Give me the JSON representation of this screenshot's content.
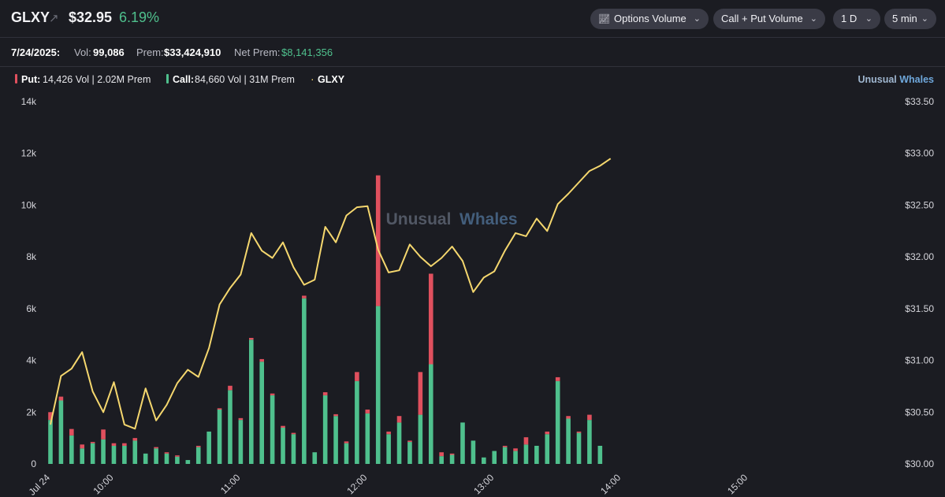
{
  "header": {
    "ticker": "GLXY",
    "price": "$32.95",
    "change": "6.19%",
    "controls": [
      {
        "label": "Options Volume",
        "icon": "line-chart-icon"
      },
      {
        "label": "Call + Put Volume"
      },
      {
        "label": "1 D"
      },
      {
        "label": "5 min"
      }
    ]
  },
  "stats": {
    "date": "7/24/2025:",
    "vol_label": "Vol:",
    "vol_value": "99,086",
    "prem_label": "Prem:",
    "prem_value": "$33,424,910",
    "net_label": "Net Prem:",
    "net_value": "$8,141,356"
  },
  "legend": {
    "put_label": "Put:",
    "put_text": "14,426 Vol | 2.02M Prem",
    "call_label": "Call:",
    "call_text": "84,660 Vol | 31M Prem",
    "stock_label": "GLXY",
    "brand_a": "Unusual",
    "brand_b": "Whales"
  },
  "watermark": {
    "a": "Unusual",
    "b": "Whales"
  },
  "colors": {
    "put": "#e0505e",
    "call": "#4fc08d",
    "price_line": "#f5d76e",
    "brand_blue": "#6fa8dc"
  },
  "chart_data": {
    "type": "bar",
    "x_ticks": [
      "Jul 24",
      "10:00",
      "11:00",
      "12:00",
      "13:00",
      "14:00",
      "15:00"
    ],
    "y_left_ticks": [
      "0",
      "2k",
      "4k",
      "6k",
      "8k",
      "10k",
      "12k",
      "14k"
    ],
    "y_right_ticks": [
      "$30.00",
      "$30.50",
      "$31.00",
      "$31.50",
      "$32.00",
      "$32.50",
      "$33.00",
      "$33.50"
    ],
    "ylim_left": [
      0,
      14000
    ],
    "ylim_right": [
      30,
      33.5
    ],
    "x_range_minutes": [
      570,
      960
    ],
    "series": [
      {
        "name": "Call",
        "x": [
          570,
          575,
          580,
          585,
          590,
          595,
          600,
          605,
          610,
          615,
          620,
          625,
          630,
          635,
          640,
          645,
          650,
          655,
          660,
          665,
          670,
          675,
          680,
          685,
          690,
          695,
          700,
          705,
          710,
          715,
          720,
          725,
          730,
          735,
          740,
          745,
          750,
          755,
          760,
          765,
          770,
          775,
          780,
          785,
          790,
          795,
          800,
          805,
          810,
          815,
          820,
          825,
          830
        ],
        "call": [
          1700,
          2450,
          1100,
          600,
          800,
          950,
          700,
          700,
          900,
          400,
          600,
          400,
          280,
          150,
          650,
          1250,
          2100,
          2850,
          1700,
          4800,
          3950,
          2650,
          1400,
          1150,
          6400,
          450,
          2650,
          1850,
          800,
          3200,
          1950,
          6100,
          1150,
          1600,
          850,
          1900,
          3850,
          300,
          350,
          1600,
          900,
          250,
          500,
          650,
          500,
          750,
          700,
          1150,
          3200,
          1750,
          1200,
          1700,
          700
        ]
      },
      {
        "name": "Put",
        "put": [
          300,
          150,
          250,
          150,
          50,
          380,
          100,
          100,
          100,
          0,
          50,
          50,
          50,
          0,
          50,
          0,
          50,
          170,
          70,
          70,
          100,
          70,
          70,
          50,
          100,
          0,
          120,
          70,
          70,
          350,
          150,
          5050,
          100,
          250,
          50,
          1650,
          3500,
          150,
          50,
          0,
          0,
          0,
          0,
          50,
          100,
          280,
          0,
          100,
          150,
          100,
          50,
          200,
          0
        ]
      },
      {
        "name": "GLXY",
        "x": [
          570,
          575,
          580,
          585,
          590,
          595,
          600,
          605,
          610,
          615,
          620,
          625,
          630,
          635,
          640,
          645,
          650,
          655,
          660,
          665,
          670,
          675,
          680,
          685,
          690,
          695,
          700,
          705,
          710,
          715,
          720,
          725,
          730,
          735,
          740,
          745,
          750,
          755,
          760,
          765,
          770,
          775,
          780,
          785,
          790,
          795,
          800,
          805,
          810,
          815,
          820,
          825,
          830,
          835
        ],
        "price": [
          30.38,
          30.85,
          30.92,
          31.08,
          30.7,
          30.5,
          30.79,
          30.38,
          30.34,
          30.73,
          30.42,
          30.57,
          30.78,
          30.91,
          30.84,
          31.12,
          31.54,
          31.7,
          31.83,
          32.23,
          32.06,
          31.99,
          32.14,
          31.9,
          31.73,
          31.78,
          32.29,
          32.14,
          32.4,
          32.48,
          32.49,
          32.07,
          31.85,
          31.87,
          32.12,
          32.0,
          31.91,
          31.99,
          32.1,
          31.96,
          31.66,
          31.8,
          31.86,
          32.06,
          32.23,
          32.2,
          32.37,
          32.25,
          32.51,
          32.61,
          32.72,
          32.83,
          32.88,
          32.95
        ]
      }
    ]
  }
}
